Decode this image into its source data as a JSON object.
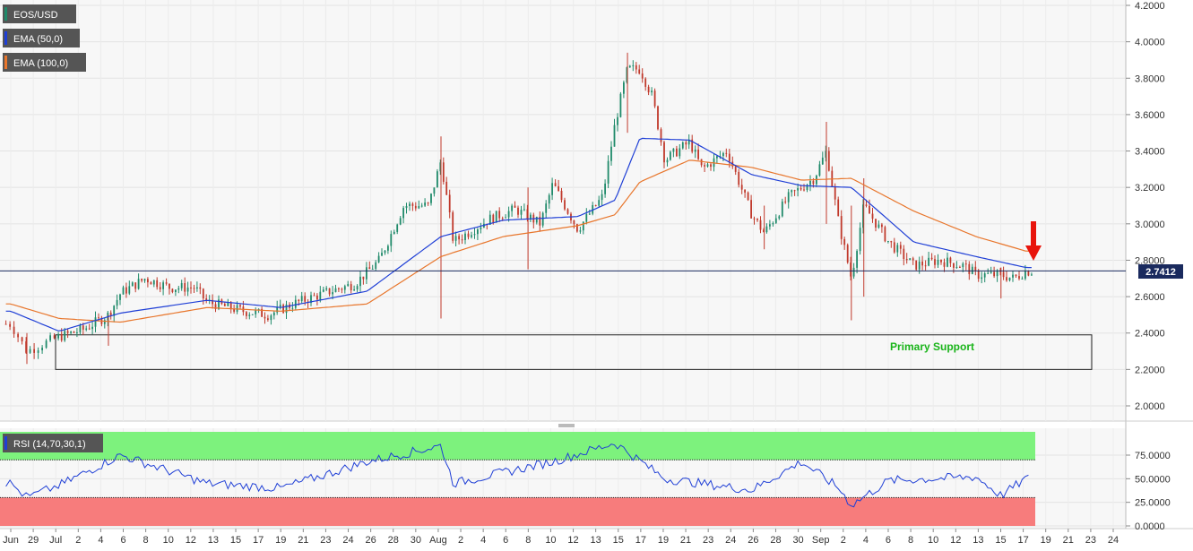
{
  "legend": {
    "symbol": "EOS/USD",
    "ema50": "EMA (50,0)",
    "ema100": "EMA (100,0)",
    "rsi": "RSI (14,70,30,1)"
  },
  "annotations": {
    "support_label": "Primary Support",
    "current_price": "2.7412"
  },
  "colors": {
    "candle_up": "#1f8a6a",
    "candle_down": "#c0392b",
    "ema50": "#1f3fd6",
    "ema100": "#e8762c",
    "rsi_line": "#1f3fd6",
    "overbought_zone": "#7df27d",
    "oversold_zone": "#f77c7c",
    "support_text": "#19b419",
    "arrow": "#e8140c",
    "price_line": "#1a2a5e"
  },
  "chart_data": [
    {
      "type": "candlestick",
      "title": "EOS/USD",
      "y_ticks": [
        "4.2000",
        "4.0000",
        "3.8000",
        "3.6000",
        "3.4000",
        "3.2000",
        "3.0000",
        "2.8000",
        "2.6000",
        "2.4000",
        "2.2000",
        "2.0000"
      ],
      "ylim": [
        1.94,
        4.21
      ],
      "x_ticks": [
        "Jun",
        "29",
        "Jul",
        "2",
        "4",
        "6",
        "8",
        "10",
        "12",
        "13",
        "15",
        "17",
        "19",
        "21",
        "23",
        "24",
        "26",
        "28",
        "30",
        "Aug",
        "2",
        "4",
        "6",
        "8",
        "10",
        "12",
        "13",
        "15",
        "17",
        "19",
        "21",
        "23",
        "24",
        "26",
        "28",
        "30",
        "Sep",
        "2",
        "4",
        "6",
        "8",
        "10",
        "12",
        "13",
        "15",
        "17",
        "19",
        "21",
        "23",
        "24"
      ],
      "series": [
        {
          "name": "EMA (50,0)",
          "key_points": [
            [
              "Jun 28",
              2.52
            ],
            [
              "Jul 1",
              2.41
            ],
            [
              "Jul 6",
              2.51
            ],
            [
              "Jul 13",
              2.58
            ],
            [
              "Jul 19",
              2.54
            ],
            [
              "Jul 26",
              2.63
            ],
            [
              "Aug 1",
              2.93
            ],
            [
              "Aug 6",
              3.02
            ],
            [
              "Aug 12",
              3.04
            ],
            [
              "Aug 15",
              3.13
            ],
            [
              "Aug 17",
              3.47
            ],
            [
              "Aug 21",
              3.46
            ],
            [
              "Aug 26",
              3.27
            ],
            [
              "Aug 30",
              3.21
            ],
            [
              "Sep 3",
              3.2
            ],
            [
              "Sep 8",
              2.9
            ],
            [
              "Sep 13",
              2.82
            ],
            [
              "Sep 17",
              2.76
            ]
          ]
        },
        {
          "name": "EMA (100,0)",
          "key_points": [
            [
              "Jun 28",
              2.56
            ],
            [
              "Jul 1",
              2.48
            ],
            [
              "Jul 6",
              2.46
            ],
            [
              "Jul 13",
              2.54
            ],
            [
              "Jul 19",
              2.52
            ],
            [
              "Jul 26",
              2.56
            ],
            [
              "Aug 1",
              2.82
            ],
            [
              "Aug 6",
              2.93
            ],
            [
              "Aug 12",
              2.99
            ],
            [
              "Aug 15",
              3.05
            ],
            [
              "Aug 17",
              3.23
            ],
            [
              "Aug 21",
              3.35
            ],
            [
              "Aug 26",
              3.31
            ],
            [
              "Aug 30",
              3.24
            ],
            [
              "Sep 3",
              3.25
            ],
            [
              "Sep 8",
              3.07
            ],
            [
              "Sep 13",
              2.93
            ],
            [
              "Sep 17",
              2.85
            ]
          ]
        }
      ],
      "ohlc_notes": {
        "low": 2.23,
        "high": 3.94,
        "last": 2.7412
      },
      "support_zone": [
        2.2,
        2.39
      ],
      "support_label": "Primary Support"
    },
    {
      "type": "line",
      "title": "RSI (14,70,30,1)",
      "y_ticks": [
        "75.0000",
        "50.0000",
        "25.0000",
        "0.0000"
      ],
      "ylim": [
        0,
        100
      ],
      "overbought": 70,
      "oversold": 30,
      "series": [
        {
          "name": "RSI (14,70,30,1)",
          "key_points": [
            [
              "Jun 28",
              45
            ],
            [
              "Jun 29",
              30
            ],
            [
              "Jul 6",
              75
            ],
            [
              "Jul 13",
              45
            ],
            [
              "Jul 19",
              40
            ],
            [
              "Jul 26",
              68
            ],
            [
              "Aug 1",
              85
            ],
            [
              "Aug 2",
              45
            ],
            [
              "Aug 10",
              68
            ],
            [
              "Aug 15",
              88
            ],
            [
              "Aug 19",
              50
            ],
            [
              "Aug 26",
              38
            ],
            [
              "Aug 30",
              68
            ],
            [
              "Sep 2",
              40
            ],
            [
              "Sep 3",
              22
            ],
            [
              "Sep 6",
              48
            ],
            [
              "Sep 13",
              52
            ],
            [
              "Sep 15",
              32
            ],
            [
              "Sep 17",
              50
            ]
          ]
        }
      ]
    }
  ]
}
